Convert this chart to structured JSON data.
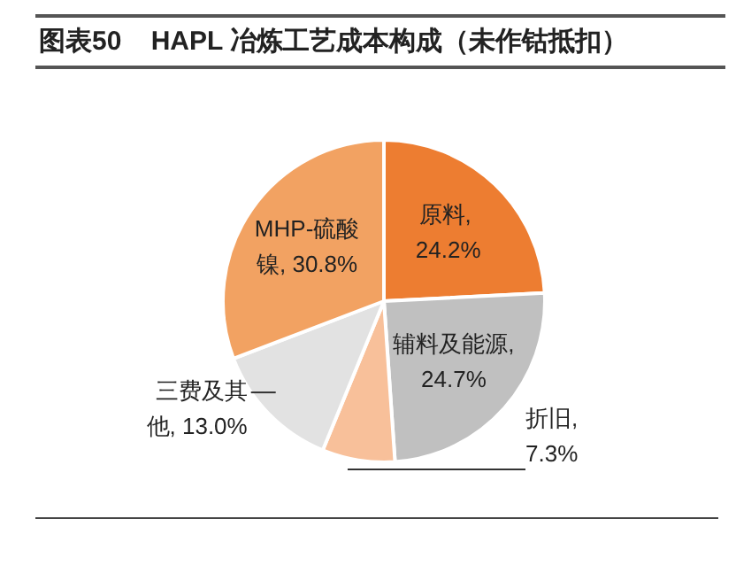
{
  "chart_data": {
    "type": "pie",
    "title": "图表50    HAPL 冶炼工艺成本构成（未作钴抵扣）",
    "categories": [
      "原料, 24.2%",
      "辅料及能源, 24.7%",
      "折旧, 7.3%",
      "三费及其他, 13.0%",
      "MHP-硫酸镍, 30.8%"
    ],
    "values": [
      24.2,
      24.7,
      7.3,
      13.0,
      30.8
    ],
    "colors": [
      "#ed7d31",
      "#c0c0c0",
      "#f8c09a",
      "#e2e2e2",
      "#f2a262"
    ],
    "legend": false
  }
}
